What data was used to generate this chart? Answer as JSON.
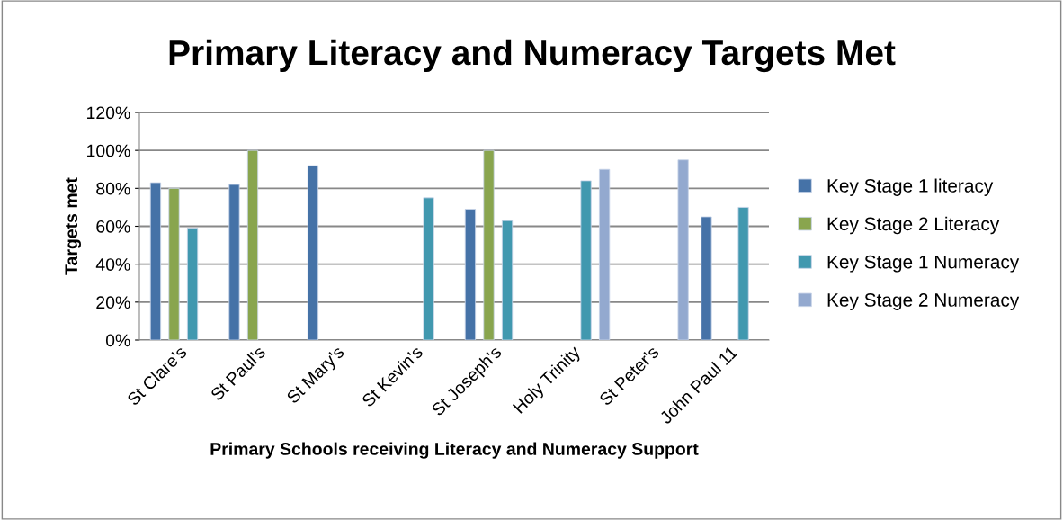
{
  "chart_data": {
    "type": "bar",
    "title": "Primary Literacy and Numeracy Targets Met",
    "xlabel": "Primary Schools receiving Literacy and Numeracy Support",
    "ylabel": "Targets met",
    "categories": [
      "St Clare's",
      "St Paul's",
      "St Mary's",
      "St Kevin's",
      "St Joseph's",
      "Holy Trinity",
      "St Peter's",
      "John Paul 11"
    ],
    "series": [
      {
        "name": "Key Stage 1 literacy",
        "color": "#4572a7",
        "values": [
          83,
          82,
          92,
          null,
          69,
          null,
          null,
          65
        ]
      },
      {
        "name": "Key Stage 2 Literacy",
        "color": "#89a54e",
        "values": [
          80,
          100,
          null,
          null,
          100,
          null,
          null,
          null
        ]
      },
      {
        "name": "Key Stage 1 Numeracy",
        "color": "#4198af",
        "values": [
          59,
          null,
          null,
          75,
          63,
          84,
          null,
          70
        ]
      },
      {
        "name": "Key Stage 2 Numeracy",
        "color": "#93a9cf",
        "values": [
          null,
          null,
          null,
          null,
          null,
          90,
          95,
          null
        ]
      }
    ],
    "ylim": [
      0,
      120
    ],
    "yticks": [
      {
        "value": 0,
        "label": "0%"
      },
      {
        "value": 20,
        "label": "20%"
      },
      {
        "value": 40,
        "label": "40%"
      },
      {
        "value": 60,
        "label": "60%"
      },
      {
        "value": 80,
        "label": "80%"
      },
      {
        "value": 100,
        "label": "100%"
      },
      {
        "value": 120,
        "label": "120%"
      }
    ],
    "grid": "y",
    "legend": "right"
  }
}
